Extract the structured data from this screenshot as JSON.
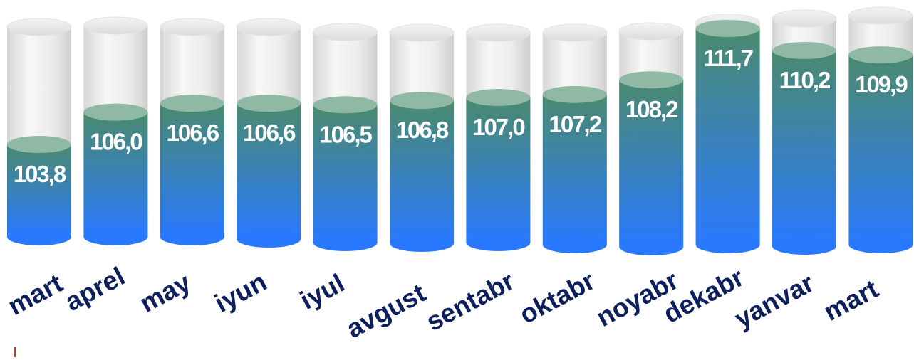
{
  "chart_data": {
    "type": "bar",
    "style": "3d-cylinder",
    "categories": [
      "mart",
      "aprel",
      "may",
      "iyun",
      "iyul",
      "avgust",
      "sentabr",
      "oktabr",
      "noyabr",
      "dekabr",
      "yanvar",
      "mart"
    ],
    "values": [
      103.8,
      106.0,
      106.6,
      106.6,
      106.5,
      106.8,
      107.0,
      107.2,
      108.2,
      111.7,
      110.2,
      109.9
    ],
    "value_labels": [
      "103,8",
      "106,0",
      "106,6",
      "106,6",
      "106,5",
      "106,8",
      "107,0",
      "107,2",
      "108,2",
      "111,7",
      "110,2",
      "109,9"
    ],
    "title": "",
    "xlabel": "",
    "ylabel": "",
    "grid": false,
    "legend": "none",
    "colors": {
      "fill_top": "#4a8a6e",
      "fill_bottom": "#2979ff",
      "cap": "#8fb9a4",
      "glass": "#e6e6e6",
      "label": "#0d1f5c",
      "value": "#ffffff"
    }
  }
}
